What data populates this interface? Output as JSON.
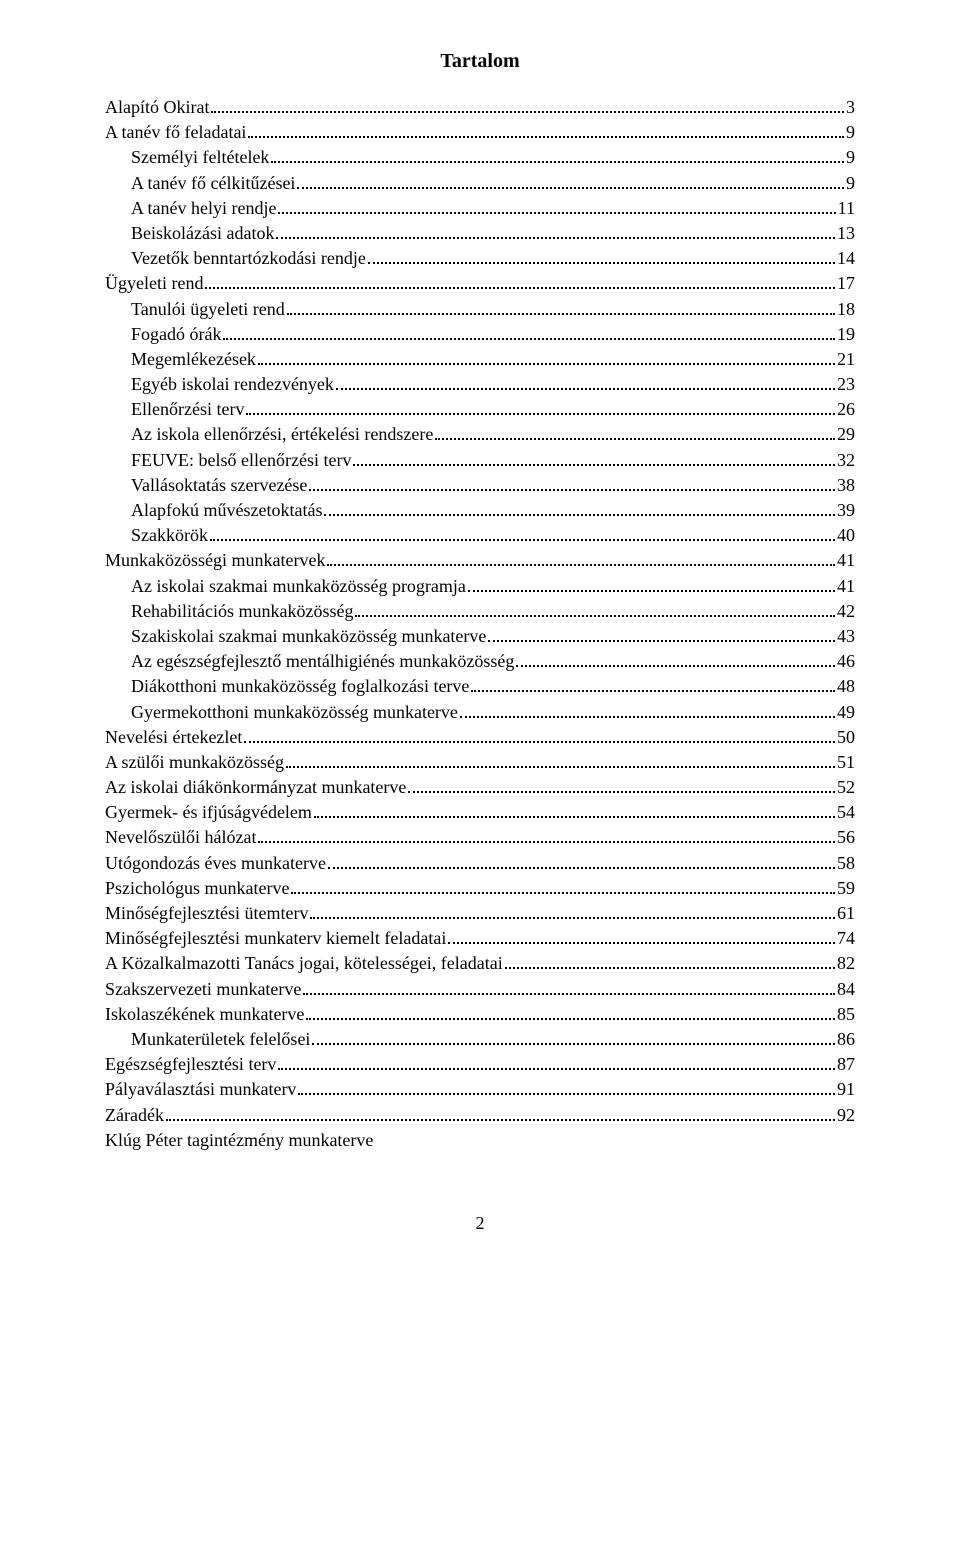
{
  "title": "Tartalom",
  "pageNumber": "2",
  "toc": [
    {
      "label": "Alapító Okirat",
      "page": "3",
      "indent": 0
    },
    {
      "label": "A tanév fő feladatai",
      "page": "9",
      "indent": 0
    },
    {
      "label": "Személyi feltételek",
      "page": "9",
      "indent": 1
    },
    {
      "label": "A tanév fő célkitűzései",
      "page": "9",
      "indent": 1
    },
    {
      "label": "A tanév helyi rendje",
      "page": "11",
      "indent": 1
    },
    {
      "label": "Beiskolázási adatok",
      "page": "13",
      "indent": 1
    },
    {
      "label": "Vezetők benntartózkodási rendje",
      "page": "14",
      "indent": 1
    },
    {
      "label": "Ügyeleti rend",
      "page": "17",
      "indent": 0
    },
    {
      "label": "Tanulói ügyeleti rend",
      "page": "18",
      "indent": 1
    },
    {
      "label": "Fogadó órák",
      "page": "19",
      "indent": 1
    },
    {
      "label": "Megemlékezések",
      "page": "21",
      "indent": 1
    },
    {
      "label": "Egyéb iskolai rendezvények",
      "page": "23",
      "indent": 1
    },
    {
      "label": "Ellenőrzési terv",
      "page": "26",
      "indent": 1
    },
    {
      "label": "Az iskola ellenőrzési, értékelési rendszere",
      "page": "29",
      "indent": 1
    },
    {
      "label": "FEUVE: belső ellenőrzési terv",
      "page": "32",
      "indent": 1
    },
    {
      "label": "Vallásoktatás szervezése",
      "page": "38",
      "indent": 1
    },
    {
      "label": "Alapfokú művészetoktatás",
      "page": "39",
      "indent": 1
    },
    {
      "label": "Szakkörök",
      "page": "40",
      "indent": 1
    },
    {
      "label": "Munkaközösségi munkatervek",
      "page": "41",
      "indent": 0
    },
    {
      "label": "Az iskolai szakmai munkaközösség programja",
      "page": "41",
      "indent": 1
    },
    {
      "label": "Rehabilitációs munkaközösség",
      "page": "42",
      "indent": 1
    },
    {
      "label": "Szakiskolai szakmai munkaközösség munkaterve",
      "page": "43",
      "indent": 1
    },
    {
      "label": "Az egészségfejlesztő mentálhigiénés munkaközösség",
      "page": "46",
      "indent": 1
    },
    {
      "label": "Diákotthoni munkaközösség foglalkozási terve",
      "page": "48",
      "indent": 1
    },
    {
      "label": "Gyermekotthoni munkaközösség munkaterve",
      "page": "49",
      "indent": 1
    },
    {
      "label": "Nevelési értekezlet",
      "page": "50",
      "indent": 0
    },
    {
      "label": "A szülői munkaközösség",
      "page": "51",
      "indent": 0
    },
    {
      "label": "Az iskolai diákönkormányzat munkaterve",
      "page": "52",
      "indent": 0
    },
    {
      "label": "Gyermek- és ifjúságvédelem",
      "page": "54",
      "indent": 0
    },
    {
      "label": "Nevelőszülői hálózat",
      "page": "56",
      "indent": 0
    },
    {
      "label": "Utógondozás éves munkaterve",
      "page": "58",
      "indent": 0
    },
    {
      "label": "Pszichológus munkaterve",
      "page": "59",
      "indent": 0
    },
    {
      "label": "Minőségfejlesztési ütemterv",
      "page": "61",
      "indent": 0
    },
    {
      "label": "Minőségfejlesztési munkaterv kiemelt feladatai",
      "page": "74",
      "indent": 0
    },
    {
      "label": "A Közalkalmazotti Tanács jogai, kötelességei, feladatai",
      "page": "82",
      "indent": 0
    },
    {
      "label": "Szakszervezeti munkaterve",
      "page": "84",
      "indent": 0
    },
    {
      "label": "Iskolaszékének munkaterve",
      "page": "85",
      "indent": 0
    },
    {
      "label": "Munkaterületek felelősei",
      "page": "86",
      "indent": 1
    },
    {
      "label": "Egészségfejlesztési terv",
      "page": "87",
      "indent": 0
    },
    {
      "label": "Pályaválasztási munkaterv",
      "page": "91",
      "indent": 0
    },
    {
      "label": "Záradék",
      "page": "92",
      "indent": 0
    },
    {
      "label": "Klúg Péter tagintézmény munkaterve",
      "page": "",
      "indent": 0
    }
  ]
}
